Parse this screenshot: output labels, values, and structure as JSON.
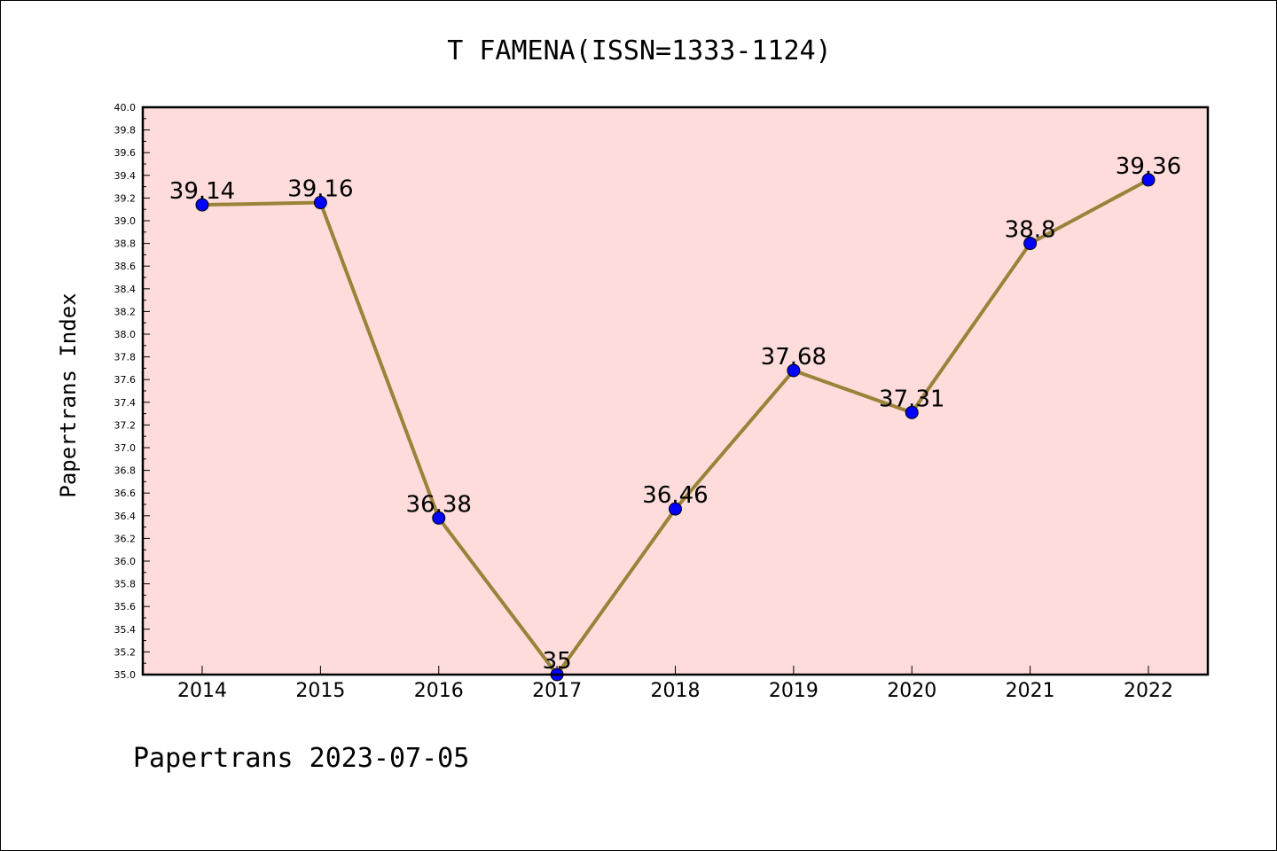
{
  "chart_data": {
    "type": "line",
    "title": "T FAMENA(ISSN=1333-1124)",
    "xlabel": "",
    "ylabel": "Papertrans Index",
    "categories": [
      "2014",
      "2015",
      "2016",
      "2017",
      "2018",
      "2019",
      "2020",
      "2021",
      "2022"
    ],
    "series": [
      {
        "values": [
          39.14,
          39.16,
          36.38,
          35,
          36.46,
          37.68,
          37.31,
          38.8,
          39.36
        ],
        "labels": [
          "39.14",
          "39.16",
          "36.38",
          "35",
          "36.46",
          "37.68",
          "37.31",
          "38.8",
          "39.36"
        ]
      }
    ],
    "ylim": [
      35.0,
      40.0
    ],
    "yticks": [
      "35.0",
      "35.2",
      "35.4",
      "35.6",
      "35.8",
      "36.0",
      "36.2",
      "36.4",
      "36.6",
      "36.8",
      "37.0",
      "37.2",
      "37.4",
      "37.6",
      "37.8",
      "38.0",
      "38.2",
      "38.4",
      "38.6",
      "38.8",
      "39.0",
      "39.2",
      "39.4",
      "39.6",
      "39.8",
      "40.0"
    ],
    "grid": false,
    "legend": "none",
    "colors": {
      "plot_background": "#fddcdb",
      "line": "#9a8238",
      "marker": "#0000ff"
    }
  },
  "footer": {
    "text": "Papertrans 2023-07-05"
  }
}
